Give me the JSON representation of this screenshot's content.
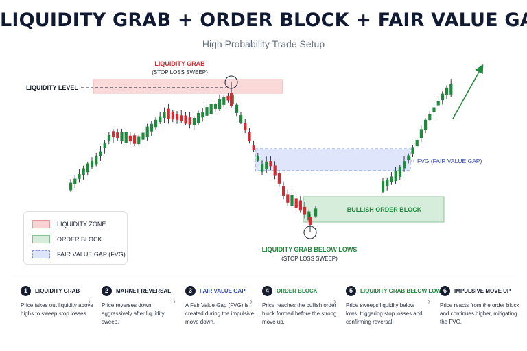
{
  "header": {
    "title": "LIQUIDITY GRAB + ORDER BLOCK + FAIR VALUE GAP",
    "subtitle": "High Probability Trade Setup"
  },
  "annotations": {
    "liquidity_grab": "LIQUIDITY GRAB",
    "liquidity_grab_sub": "(STOP LOSS SWEEP)",
    "liquidity_level": "LIQUIDITY LEVEL",
    "fvg": "FVG (FAIR VALUE GAP)",
    "order_block": "BULLISH ORDER BLOCK",
    "grab_below": "LIQUIDITY GRAB BELOW LOWS",
    "grab_below_sub": "(STOP LOSS SWEEP)"
  },
  "legend": {
    "items": [
      {
        "label": "LIQUIDITY ZONE"
      },
      {
        "label": "ORDER BLOCK"
      },
      {
        "label": "FAIR VALUE GAP (FVG)"
      }
    ]
  },
  "colors": {
    "bull": "#1e8a3c",
    "bear": "#d42b32",
    "liquidity_red": "#d42b32",
    "order_green": "#1e8a3c",
    "fvg_blue": "#2c47b8"
  },
  "steps": [
    {
      "num": "1",
      "title": "LIQUIDITY GRAB",
      "title_color": "#141c2e",
      "desc": "Price takes out liquidity above highs to sweep stop losses."
    },
    {
      "num": "2",
      "title": "MARKET REVERSAL",
      "title_color": "#141c2e",
      "desc": "Price reverses down aggressively after liquidity sweep."
    },
    {
      "num": "3",
      "title": "FAIR VALUE GAP",
      "title_color": "#2c47b8",
      "desc": "A Fair Value Gap (FVG) is created during the impulsive move down."
    },
    {
      "num": "4",
      "title": "ORDER BLOCK",
      "title_color": "#1e8a3c",
      "desc": "Price reaches the bullish order block formed before the strong move up."
    },
    {
      "num": "5",
      "title": "LIQUIDITY GRAB BELOW LOWS",
      "title_color": "#1e8a3c",
      "desc": "Price sweeps liquidity below lows, triggering stop losses and confirming reversal."
    },
    {
      "num": "6",
      "title": "IMPULSIVE MOVE UP",
      "title_color": "#141c2e",
      "desc": "Price reacts from the order block and continues higher, mitigating the FVG."
    }
  ]
}
